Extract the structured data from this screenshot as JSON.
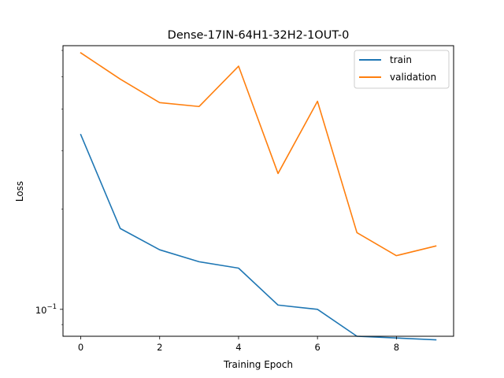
{
  "chart_data": {
    "type": "line",
    "title": "Dense-17IN-64H1-32H2-1OUT-0",
    "xlabel": "Training Epoch",
    "ylabel": "Loss",
    "x": [
      0,
      1,
      2,
      3,
      4,
      5,
      6,
      7,
      8,
      9
    ],
    "xlim": [
      -0.45,
      9.45
    ],
    "xticks": [
      0,
      2,
      4,
      6,
      8
    ],
    "xtick_labels": [
      "0",
      "2",
      "4",
      "6",
      "8"
    ],
    "yscale": "log",
    "ylim": [
      0.083,
      0.62
    ],
    "yticks": [
      0.1
    ],
    "ytick_labels": [
      {
        "base": "10",
        "exp": "−1"
      }
    ],
    "grid": false,
    "legend": "top-right",
    "series": [
      {
        "name": "train",
        "color": "#1f77b4",
        "values": [
          0.335,
          0.175,
          0.151,
          0.139,
          0.133,
          0.103,
          0.1,
          0.083,
          0.082,
          0.081
        ]
      },
      {
        "name": "validation",
        "color": "#ff7f0e",
        "values": [
          0.59,
          0.492,
          0.418,
          0.407,
          0.538,
          0.256,
          0.422,
          0.17,
          0.145,
          0.155
        ]
      }
    ]
  }
}
